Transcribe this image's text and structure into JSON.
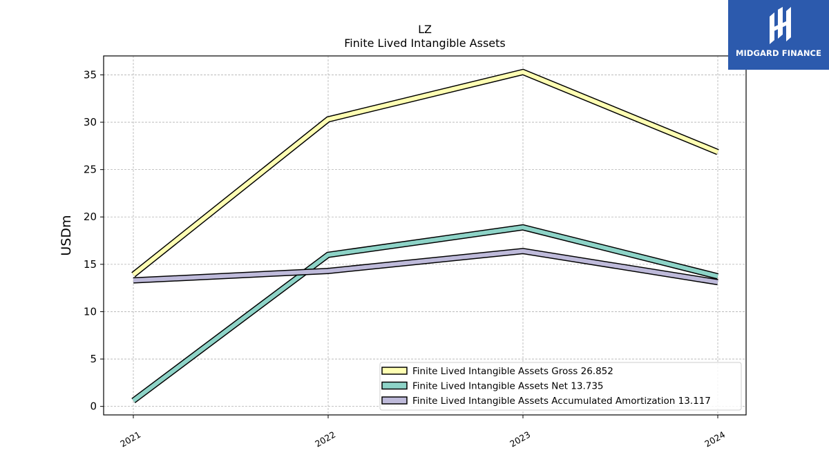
{
  "chart_data": {
    "type": "line",
    "title": "LZ",
    "subtitle": "Finite Lived Intangible Assets",
    "xlabel": "",
    "ylabel": "USDm",
    "categories": [
      "2021",
      "2022",
      "2023",
      "2024"
    ],
    "ylim": [
      -0.9,
      37
    ],
    "yticks": [
      0,
      5,
      10,
      15,
      20,
      25,
      30,
      35
    ],
    "grid": true,
    "legend_position": "lower-right",
    "series": [
      {
        "name": "Finite Lived Intangible Assets Gross",
        "legend_label": "Finite Lived Intangible Assets Gross  26.852",
        "values": [
          13.9,
          30.3,
          35.3,
          26.852
        ],
        "color": "#ffffb3"
      },
      {
        "name": "Finite Lived Intangible Assets Net",
        "legend_label": "Finite Lived Intangible Assets Net  13.735",
        "values": [
          0.6,
          16.0,
          18.9,
          13.735
        ],
        "color": "#8dd3c7"
      },
      {
        "name": "Finite Lived Intangible Assets Accumulated Amortization",
        "legend_label": "Finite Lived Intangible Assets Accumulated Amortization  13.117",
        "values": [
          13.3,
          14.3,
          16.4,
          13.117
        ],
        "color": "#bebada"
      }
    ]
  },
  "brand": {
    "name": "MIDGARD FINANCE",
    "background": "#2c5aad",
    "icon": "midgard-logo-icon"
  }
}
